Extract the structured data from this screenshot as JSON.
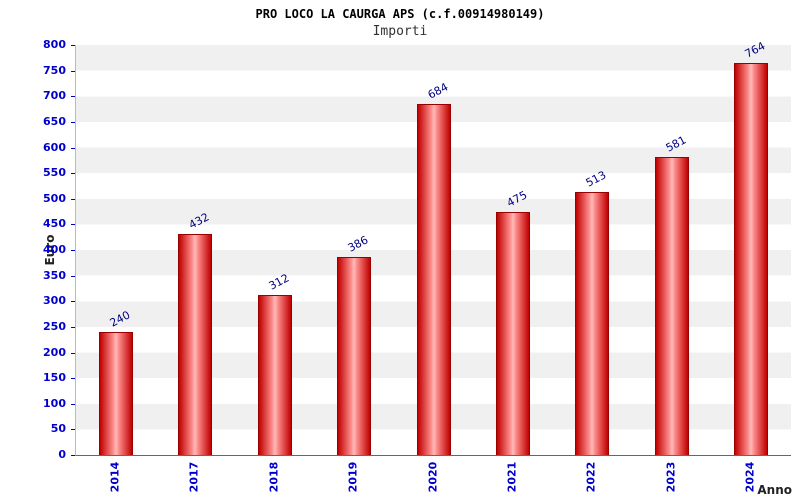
{
  "header": {
    "title": "PRO LOCO LA CAURGA APS (c.f.00914980149)",
    "subtitle": "Importi"
  },
  "chart_data": {
    "type": "bar",
    "title": "PRO LOCO LA CAURGA APS (c.f.00914980149)",
    "subtitle": "Importi",
    "categories": [
      "2014",
      "2017",
      "2018",
      "2019",
      "2020",
      "2021",
      "2022",
      "2023",
      "2024"
    ],
    "values": [
      240,
      432,
      312,
      386,
      684,
      475,
      513,
      581,
      764
    ],
    "xlabel": "Anno",
    "ylabel": "Euro",
    "ylim": [
      0,
      800
    ],
    "ytick_step": 50,
    "legend": "none",
    "grid": "striped-bands",
    "colors": {
      "bar_main": "#c00000",
      "bar_highlight": "#ffbcbc",
      "bar_border": "#990000",
      "axis_tick_label": "#0000cc",
      "value_label": "#000080",
      "stripe": "#f0f0f0",
      "title": "#000000",
      "subtitle": "#333333"
    }
  }
}
